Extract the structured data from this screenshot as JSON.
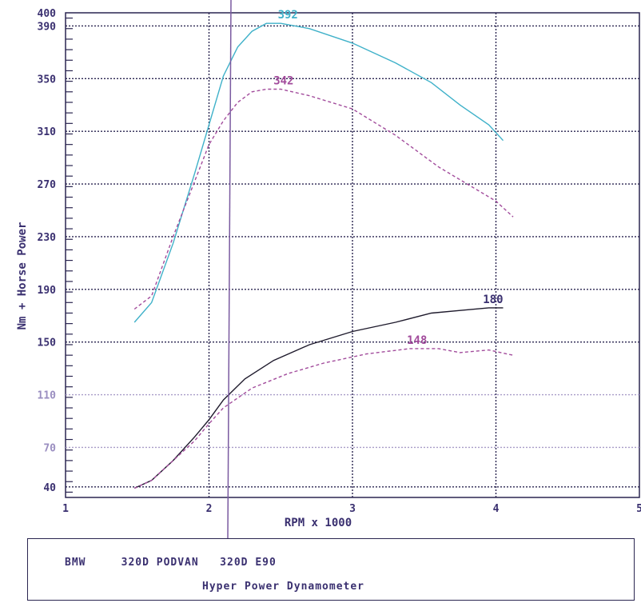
{
  "chart_data": {
    "type": "line",
    "xlabel": "RPM x 1000",
    "ylabel": "Nm + Horse Power",
    "xlim": [
      1,
      5
    ],
    "ylim": [
      32,
      400
    ],
    "x_ticks": [
      "1",
      "2",
      "3",
      "4",
      "5"
    ],
    "y_ticks": [
      "40",
      "70",
      "110",
      "150",
      "190",
      "230",
      "270",
      "310",
      "350",
      "390",
      "400"
    ],
    "grid": true,
    "series": [
      {
        "color": "#3fb1c9",
        "dashed": false,
        "x": [
          1.48,
          1.6,
          1.75,
          1.9,
          2.0,
          2.1,
          2.2,
          2.3,
          2.4,
          2.5,
          2.7,
          3.0,
          3.3,
          3.55,
          3.75,
          3.95,
          4.05
        ],
        "y": [
          165,
          180,
          225,
          278,
          315,
          352,
          374,
          386,
          392,
          392,
          388,
          377,
          362,
          347,
          330,
          315,
          303
        ]
      },
      {
        "color": "#a24c9c",
        "dashed": true,
        "x": [
          1.48,
          1.6,
          1.75,
          1.9,
          2.0,
          2.1,
          2.2,
          2.3,
          2.4,
          2.5,
          2.7,
          3.0,
          3.3,
          3.6,
          3.8,
          4.0,
          4.12
        ],
        "y": [
          175,
          185,
          230,
          272,
          300,
          318,
          332,
          340,
          342,
          342,
          337,
          327,
          307,
          283,
          270,
          257,
          245
        ]
      },
      {
        "color": "#1e1a2c",
        "dashed": false,
        "x": [
          1.48,
          1.6,
          1.75,
          1.9,
          2.0,
          2.1,
          2.25,
          2.45,
          2.7,
          3.0,
          3.3,
          3.55,
          3.75,
          3.95,
          4.05
        ],
        "y": [
          39,
          45,
          60,
          78,
          91,
          106,
          122,
          136,
          148,
          158,
          165,
          172,
          174,
          176,
          176
        ]
      },
      {
        "color": "#a24c9c",
        "dashed": true,
        "x": [
          1.48,
          1.6,
          1.75,
          1.9,
          2.0,
          2.1,
          2.3,
          2.55,
          2.8,
          3.1,
          3.4,
          3.6,
          3.75,
          3.95,
          4.12
        ],
        "y": [
          39,
          45,
          60,
          75,
          88,
          100,
          115,
          126,
          134,
          141,
          145,
          145,
          142,
          144,
          140
        ]
      }
    ],
    "annotations": [
      {
        "text": "392",
        "x": 2.55,
        "y": 392,
        "color": "#3fb1c9"
      },
      {
        "text": "342",
        "x": 2.52,
        "y": 342,
        "color": "#a24c9c"
      },
      {
        "text": "180",
        "x": 3.98,
        "y": 176,
        "color": "#3a3070"
      },
      {
        "text": "148",
        "x": 3.45,
        "y": 145,
        "color": "#a24c9c"
      }
    ]
  },
  "footer": {
    "line1": "BMW     320D PODVAN   320D E90",
    "line2": "Hyper Power Dynamometer"
  }
}
